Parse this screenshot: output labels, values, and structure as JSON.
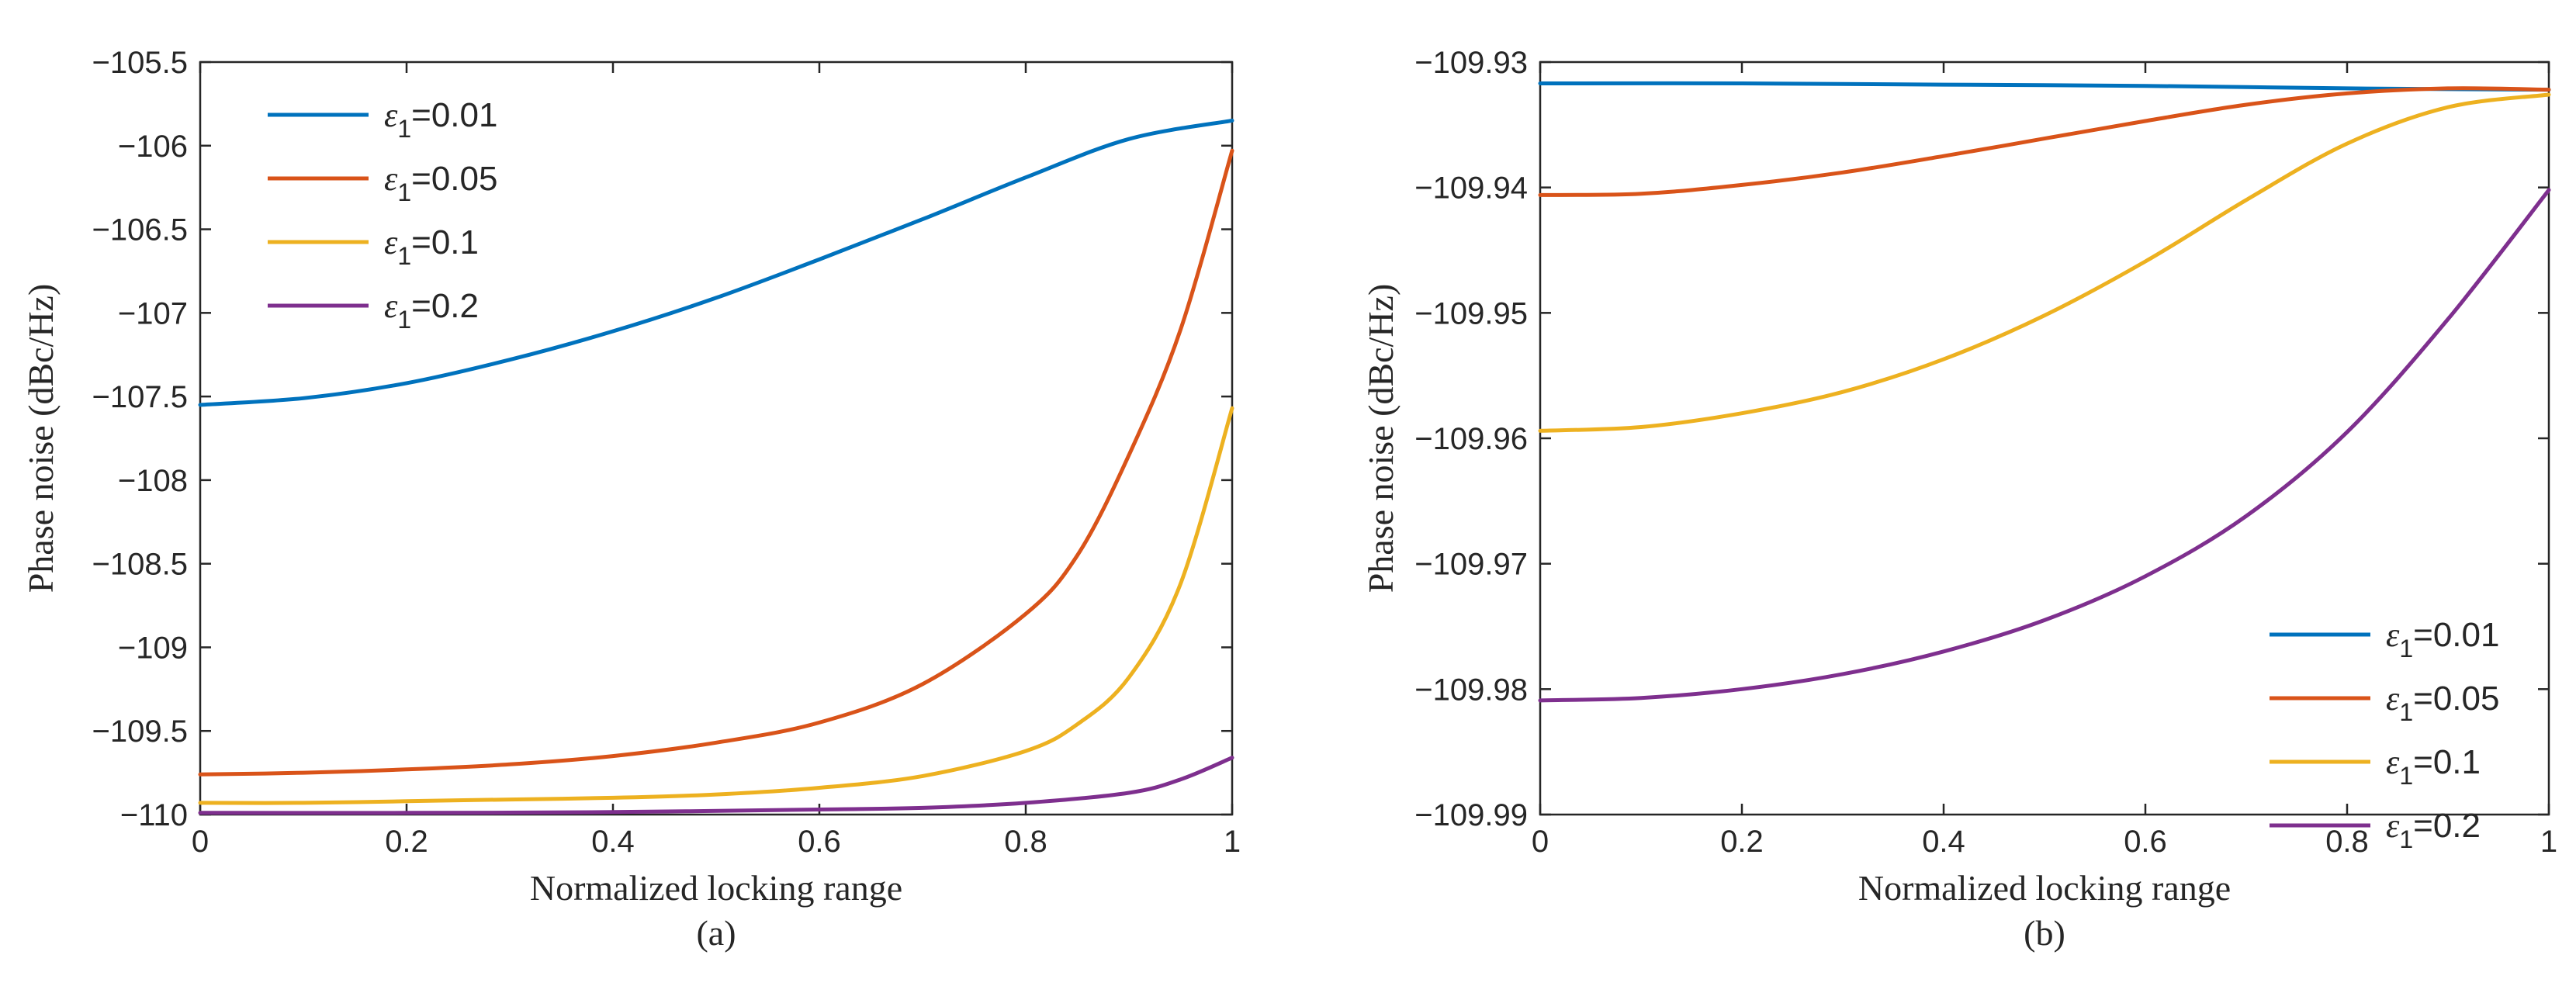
{
  "chart_data": [
    {
      "type": "line",
      "caption": "(a)",
      "xlabel": "Normalized locking range",
      "ylabel": "Phase noise (dBc/Hz)",
      "xlim": [
        0,
        1
      ],
      "ylim": [
        -110,
        -105.5
      ],
      "xticks": [
        0,
        0.2,
        0.4,
        0.6,
        0.8,
        1
      ],
      "xtick_labels": [
        "0",
        "0.2",
        "0.4",
        "0.6",
        "0.8",
        "1"
      ],
      "yticks": [
        -110,
        -109.5,
        -109,
        -108.5,
        -108,
        -107.5,
        -107,
        -106.5,
        -106,
        -105.5
      ],
      "ytick_labels": [
        "−110",
        "−109.5",
        "−109",
        "−108.5",
        "−108",
        "−107.5",
        "−107",
        "−106.5",
        "−106",
        "−105.5"
      ],
      "legend_position": "top-left",
      "series": [
        {
          "name": "ε1=0.01",
          "eps": "ε",
          "sub": "1",
          "value": "=0.01",
          "color": "#0072BD",
          "x": [
            0,
            0.1,
            0.2,
            0.3,
            0.4,
            0.5,
            0.6,
            0.7,
            0.8,
            0.9,
            1.0
          ],
          "y": [
            -107.55,
            -107.51,
            -107.42,
            -107.28,
            -107.11,
            -106.91,
            -106.68,
            -106.44,
            -106.19,
            -105.96,
            -105.85
          ]
        },
        {
          "name": "ε1=0.05",
          "eps": "ε",
          "sub": "1",
          "value": "=0.05",
          "color": "#D95319",
          "x": [
            0,
            0.1,
            0.2,
            0.3,
            0.4,
            0.5,
            0.6,
            0.7,
            0.8,
            0.85,
            0.9,
            0.95,
            1.0
          ],
          "y": [
            -109.76,
            -109.75,
            -109.73,
            -109.7,
            -109.65,
            -109.57,
            -109.45,
            -109.22,
            -108.8,
            -108.45,
            -107.85,
            -107.1,
            -106.03
          ]
        },
        {
          "name": "ε1=0.1",
          "eps": "ε",
          "sub": "1",
          "value": "=0.1",
          "color": "#EDB120",
          "x": [
            0,
            0.1,
            0.2,
            0.3,
            0.4,
            0.5,
            0.6,
            0.7,
            0.8,
            0.85,
            0.9,
            0.95,
            1.0
          ],
          "y": [
            -109.93,
            -109.93,
            -109.92,
            -109.91,
            -109.9,
            -109.88,
            -109.84,
            -109.77,
            -109.62,
            -109.46,
            -109.18,
            -108.62,
            -107.57
          ]
        },
        {
          "name": "ε1=0.2",
          "eps": "ε",
          "sub": "1",
          "value": "=0.2",
          "color": "#7E2F8E",
          "x": [
            0,
            0.2,
            0.4,
            0.6,
            0.7,
            0.8,
            0.9,
            0.95,
            1.0
          ],
          "y": [
            -109.99,
            -109.99,
            -109.985,
            -109.97,
            -109.96,
            -109.93,
            -109.87,
            -109.79,
            -109.66
          ]
        }
      ]
    },
    {
      "type": "line",
      "caption": "(b)",
      "xlabel": "Normalized locking range",
      "ylabel": "Phase noise (dBc/Hz)",
      "xlim": [
        0,
        1
      ],
      "ylim": [
        -109.99,
        -109.93
      ],
      "xticks": [
        0,
        0.2,
        0.4,
        0.6,
        0.8,
        1
      ],
      "xtick_labels": [
        "0",
        "0.2",
        "0.4",
        "0.6",
        "0.8",
        "1"
      ],
      "yticks": [
        -109.99,
        -109.98,
        -109.97,
        -109.96,
        -109.95,
        -109.94,
        -109.93
      ],
      "ytick_labels": [
        "−109.99",
        "−109.98",
        "−109.97",
        "−109.96",
        "−109.95",
        "−109.94",
        "−109.93"
      ],
      "legend_position": "bottom-right",
      "series": [
        {
          "name": "ε1=0.01",
          "eps": "ε",
          "sub": "1",
          "value": "=0.01",
          "color": "#0072BD",
          "x": [
            0,
            0.2,
            0.4,
            0.6,
            0.8,
            1.0
          ],
          "y": [
            -109.9317,
            -109.9317,
            -109.9318,
            -109.9319,
            -109.9321,
            -109.9322
          ]
        },
        {
          "name": "ε1=0.05",
          "eps": "ε",
          "sub": "1",
          "value": "=0.05",
          "color": "#D95319",
          "x": [
            0,
            0.1,
            0.2,
            0.3,
            0.4,
            0.5,
            0.6,
            0.7,
            0.8,
            0.9,
            1.0
          ],
          "y": [
            -109.9406,
            -109.9405,
            -109.9398,
            -109.9388,
            -109.9375,
            -109.9361,
            -109.9347,
            -109.9334,
            -109.9325,
            -109.9321,
            -109.9322
          ]
        },
        {
          "name": "ε1=0.1",
          "eps": "ε",
          "sub": "1",
          "value": "=0.1",
          "color": "#EDB120",
          "x": [
            0,
            0.1,
            0.2,
            0.3,
            0.4,
            0.5,
            0.6,
            0.7,
            0.8,
            0.9,
            1.0
          ],
          "y": [
            -109.9594,
            -109.9591,
            -109.958,
            -109.9563,
            -109.9537,
            -109.9502,
            -109.9459,
            -109.941,
            -109.9365,
            -109.9336,
            -109.9326
          ]
        },
        {
          "name": "ε1=0.2",
          "eps": "ε",
          "sub": "1",
          "value": "=0.2",
          "color": "#7E2F8E",
          "x": [
            0,
            0.1,
            0.2,
            0.3,
            0.4,
            0.5,
            0.6,
            0.7,
            0.8,
            0.9,
            1.0
          ],
          "y": [
            -109.9809,
            -109.9807,
            -109.98,
            -109.9788,
            -109.977,
            -109.9745,
            -109.971,
            -109.9662,
            -109.9595,
            -109.9505,
            -109.9402
          ]
        }
      ]
    }
  ]
}
